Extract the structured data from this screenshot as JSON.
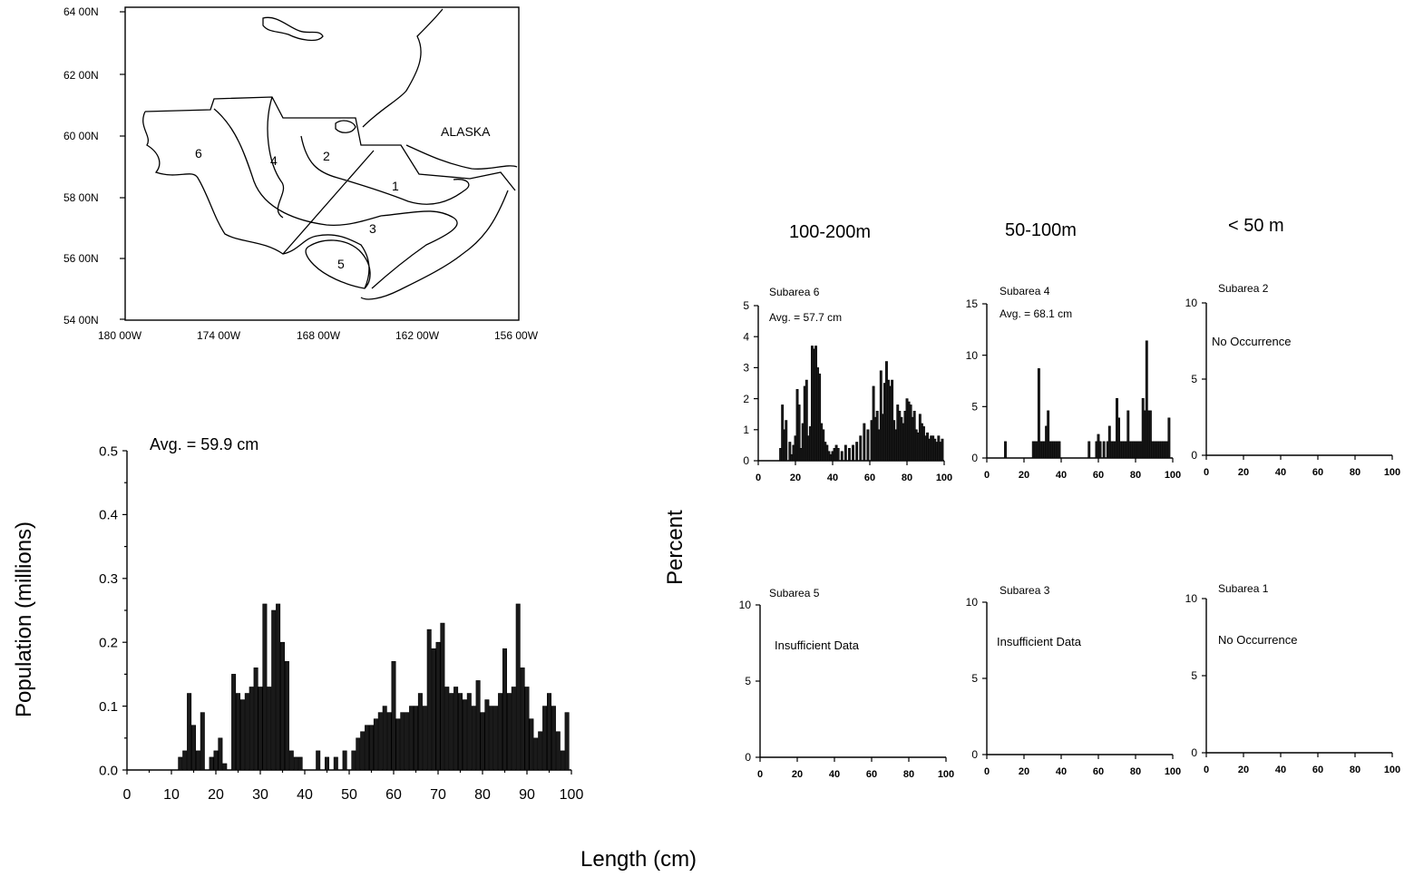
{
  "map": {
    "lat_labels": [
      "64 00N",
      "62 00N",
      "60 00N",
      "58 00N",
      "56 00N",
      "54 00N"
    ],
    "lon_labels": [
      "180 00W",
      "174 00W",
      "168 00W",
      "162 00W",
      "156 00W"
    ],
    "region_label": "ALASKA",
    "subarea_numbers": [
      "1",
      "2",
      "3",
      "4",
      "5",
      "6"
    ]
  },
  "depth_headers": [
    "100-200m",
    "50-100m",
    "< 50 m"
  ],
  "shared": {
    "xlabel": "Length (cm)",
    "ylabel_panels": "Percent"
  },
  "chart_data": [
    {
      "type": "bar",
      "title": "Avg. = 59.9 cm",
      "xlabel": "Length (cm)",
      "ylabel": "Population (millions)",
      "xlim": [
        0,
        100
      ],
      "ylim": [
        0,
        0.5
      ],
      "xticks": [
        "0",
        "10",
        "20",
        "30",
        "40",
        "50",
        "60",
        "70",
        "80",
        "90",
        "100"
      ],
      "yticks": [
        "0.0",
        "0.1",
        "0.2",
        "0.3",
        "0.4",
        "0.5"
      ],
      "x": [
        12,
        13,
        14,
        15,
        16,
        17,
        19,
        20,
        21,
        22,
        24,
        25,
        26,
        27,
        28,
        29,
        30,
        31,
        32,
        33,
        34,
        35,
        36,
        37,
        38,
        39,
        43,
        45,
        47,
        49,
        51,
        52,
        53,
        54,
        55,
        56,
        57,
        58,
        59,
        60,
        61,
        62,
        63,
        64,
        65,
        66,
        67,
        68,
        69,
        70,
        71,
        72,
        73,
        74,
        75,
        76,
        77,
        78,
        79,
        80,
        81,
        82,
        83,
        84,
        85,
        86,
        87,
        88,
        89,
        90,
        91,
        92,
        93,
        94,
        95,
        96,
        97,
        98,
        99
      ],
      "values": [
        0.02,
        0.03,
        0.12,
        0.07,
        0.03,
        0.09,
        0.02,
        0.03,
        0.05,
        0.01,
        0.15,
        0.12,
        0.11,
        0.12,
        0.13,
        0.16,
        0.13,
        0.26,
        0.13,
        0.25,
        0.26,
        0.2,
        0.17,
        0.03,
        0.02,
        0.02,
        0.03,
        0.02,
        0.02,
        0.03,
        0.03,
        0.05,
        0.06,
        0.07,
        0.07,
        0.08,
        0.09,
        0.1,
        0.09,
        0.17,
        0.08,
        0.09,
        0.09,
        0.1,
        0.1,
        0.12,
        0.1,
        0.22,
        0.19,
        0.2,
        0.23,
        0.13,
        0.12,
        0.13,
        0.12,
        0.11,
        0.12,
        0.1,
        0.14,
        0.09,
        0.11,
        0.1,
        0.1,
        0.12,
        0.19,
        0.12,
        0.13,
        0.26,
        0.16,
        0.13,
        0.08,
        0.05,
        0.06,
        0.1,
        0.12,
        0.1,
        0.06,
        0.03,
        0.09
      ]
    },
    {
      "type": "bar",
      "title": "Subarea 6",
      "subtitle": "Avg. = 57.7 cm",
      "xlim": [
        0,
        100
      ],
      "ylim": [
        0,
        5
      ],
      "xticks": [
        "0",
        "20",
        "40",
        "60",
        "80",
        "100"
      ],
      "yticks": [
        "0",
        "1",
        "2",
        "3",
        "4",
        "5"
      ],
      "x": [
        12,
        13,
        14,
        15,
        17,
        18,
        19,
        20,
        21,
        22,
        23,
        24,
        25,
        26,
        27,
        28,
        29,
        30,
        31,
        32,
        33,
        34,
        35,
        36,
        37,
        38,
        39,
        40,
        41,
        42,
        43,
        45,
        47,
        49,
        51,
        53,
        55,
        57,
        59,
        61,
        62,
        63,
        64,
        65,
        66,
        67,
        68,
        69,
        70,
        71,
        72,
        73,
        74,
        75,
        76,
        77,
        78,
        79,
        80,
        81,
        82,
        83,
        84,
        85,
        86,
        87,
        88,
        89,
        90,
        91,
        92,
        93,
        94,
        95,
        96,
        97,
        98,
        99
      ],
      "values": [
        0.4,
        1.8,
        1.0,
        1.3,
        0.6,
        0.2,
        0.5,
        0.8,
        2.3,
        1.8,
        0.4,
        1.2,
        2.4,
        2.6,
        0.8,
        1.1,
        3.7,
        3.6,
        3.7,
        3.0,
        2.8,
        1.2,
        1.0,
        0.6,
        0.5,
        0.3,
        0.2,
        0.3,
        0.4,
        0.5,
        0.4,
        0.3,
        0.5,
        0.4,
        0.5,
        0.6,
        0.8,
        1.2,
        1.0,
        1.3,
        2.4,
        1.4,
        1.6,
        1.0,
        2.9,
        1.5,
        2.5,
        3.2,
        2.6,
        2.4,
        2.6,
        1.3,
        1.0,
        1.8,
        1.6,
        1.4,
        1.2,
        1.6,
        2.0,
        1.9,
        1.8,
        1.4,
        1.6,
        1.0,
        0.9,
        1.5,
        1.2,
        1.1,
        0.8,
        0.9,
        0.7,
        0.8,
        0.8,
        0.7,
        0.6,
        0.8,
        0.6,
        0.7
      ]
    },
    {
      "type": "bar",
      "title": "Subarea 4",
      "subtitle": "Avg. = 68.1 cm",
      "xlim": [
        0,
        100
      ],
      "ylim": [
        0,
        15
      ],
      "xticks": [
        "0",
        "20",
        "40",
        "60",
        "80",
        "100"
      ],
      "yticks": [
        "0",
        "5",
        "10",
        "15"
      ],
      "x": [
        10,
        25,
        26,
        27,
        28,
        29,
        30,
        31,
        32,
        33,
        34,
        35,
        36,
        37,
        38,
        39,
        55,
        59,
        60,
        61,
        63,
        65,
        66,
        67,
        68,
        69,
        70,
        71,
        72,
        73,
        74,
        75,
        76,
        77,
        78,
        79,
        80,
        81,
        82,
        83,
        84,
        85,
        86,
        87,
        88,
        89,
        90,
        91,
        92,
        93,
        94,
        95,
        96,
        97,
        98
      ],
      "values": [
        1.6,
        1.6,
        1.6,
        1.6,
        8.7,
        1.6,
        1.6,
        1.6,
        3.1,
        4.6,
        1.6,
        1.6,
        1.6,
        1.6,
        1.6,
        1.6,
        1.6,
        1.6,
        2.3,
        1.6,
        1.6,
        1.6,
        3.1,
        1.6,
        1.6,
        1.6,
        5.8,
        3.9,
        1.6,
        1.6,
        1.6,
        1.6,
        4.6,
        1.6,
        1.6,
        1.6,
        1.6,
        1.6,
        1.6,
        1.6,
        5.8,
        4.6,
        11.4,
        4.6,
        4.6,
        1.6,
        1.6,
        1.6,
        1.6,
        1.6,
        1.6,
        1.6,
        1.6,
        1.6,
        3.9
      ]
    },
    {
      "type": "bar",
      "title": "Subarea 2",
      "annotation": "No Occurrence",
      "xlim": [
        0,
        100
      ],
      "ylim": [
        0,
        10
      ],
      "xticks": [
        "0",
        "20",
        "40",
        "60",
        "80",
        "100"
      ],
      "yticks": [
        "0",
        "5",
        "10"
      ],
      "x": [],
      "values": []
    },
    {
      "type": "bar",
      "title": "Subarea 5",
      "annotation": "Insufficient Data",
      "xlim": [
        0,
        100
      ],
      "ylim": [
        0,
        10
      ],
      "xticks": [
        "0",
        "20",
        "40",
        "60",
        "80",
        "100"
      ],
      "yticks": [
        "0",
        "5",
        "10"
      ],
      "x": [],
      "values": []
    },
    {
      "type": "bar",
      "title": "Subarea 3",
      "annotation": "Insufficient Data",
      "xlim": [
        0,
        100
      ],
      "ylim": [
        0,
        10
      ],
      "xticks": [
        "0",
        "20",
        "40",
        "60",
        "80",
        "100"
      ],
      "yticks": [
        "0",
        "5",
        "10"
      ],
      "x": [],
      "values": []
    },
    {
      "type": "bar",
      "title": "Subarea 1",
      "annotation": "No Occurrence",
      "xlim": [
        0,
        100
      ],
      "ylim": [
        0,
        10
      ],
      "xticks": [
        "0",
        "20",
        "40",
        "60",
        "80",
        "100"
      ],
      "yticks": [
        "0",
        "5",
        "10"
      ],
      "x": [],
      "values": []
    }
  ]
}
